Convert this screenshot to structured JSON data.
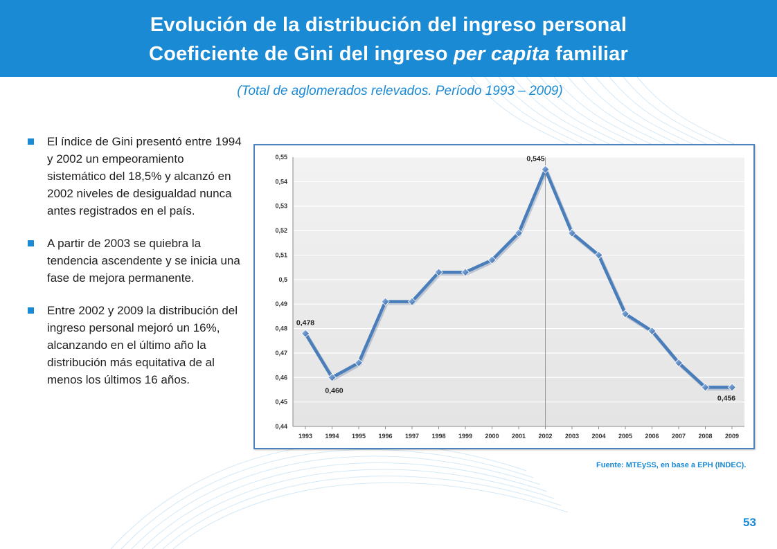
{
  "header": {
    "title_line1": "Evolución de la distribución del ingreso personal",
    "title_line2_prefix": "Coeficiente de Gini del ingreso ",
    "title_line2_italic": "per capita",
    "title_line2_suffix": " familiar"
  },
  "subtitle": "(Total de aglomerados relevados. Período 1993 – 2009)",
  "bullets": [
    "El índice de Gini presentó entre 1994 y 2002 un empeoramiento sistemático del 18,5% y alcanzó en 2002 niveles de desigualdad nunca antes registrados en el país.",
    "A partir de 2003 se quiebra la tendencia ascendente y se inicia una fase de mejora permanente.",
    "Entre 2002 y 2009 la distribución del ingreso personal mejoró un 16%, alcanzando en el último año la distribución más equitativa de al menos los últimos 16 años."
  ],
  "chart_data": {
    "type": "line",
    "title": "",
    "xlabel": "",
    "ylabel": "",
    "categories": [
      "1993",
      "1994",
      "1995",
      "1996",
      "1997",
      "1998",
      "1999",
      "2000",
      "2001",
      "2002",
      "2003",
      "2004",
      "2005",
      "2006",
      "2007",
      "2008",
      "2009"
    ],
    "series": [
      {
        "name": "Coeficiente de Gini",
        "values": [
          0.478,
          0.46,
          0.466,
          0.491,
          0.491,
          0.503,
          0.503,
          0.508,
          0.519,
          0.545,
          0.519,
          0.51,
          0.486,
          0.479,
          0.466,
          0.456,
          0.456
        ]
      }
    ],
    "ylim": [
      0.44,
      0.55
    ],
    "yticks": [
      "0,44",
      "0,45",
      "0,46",
      "0,47",
      "0,48",
      "0,49",
      "0,5",
      "0,51",
      "0,52",
      "0,53",
      "0,54",
      "0,55"
    ],
    "data_labels": [
      {
        "index": 0,
        "text": "0,478"
      },
      {
        "index": 1,
        "text": "0,460"
      },
      {
        "index": 9,
        "text": "0,545"
      },
      {
        "index": 16,
        "text": "0,456"
      }
    ],
    "vertical_reference_index": 9,
    "grid": true,
    "line_color": "#4a7ebb"
  },
  "source": "Fuente: MTEySS, en base a EPH (INDEC).",
  "page_number": "53"
}
